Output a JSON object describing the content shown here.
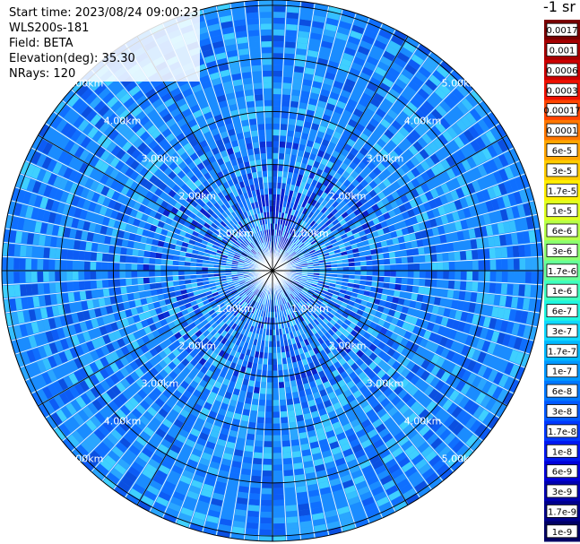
{
  "info": {
    "start_time": "Start time: 2023/08/24 09:00:23",
    "instrument": "WLS200s-181",
    "field": "Field: BETA",
    "elevation": "Elevation(deg): 35.30",
    "nrays": "NRays: 120"
  },
  "colorbar": {
    "units": "-1 sr",
    "labels": [
      "0.0017",
      "0.001",
      "0.0006",
      "0.0003",
      "0.00017",
      "0.0001",
      "6e-5",
      "3e-5",
      "1.7e-5",
      "1e-5",
      "6e-6",
      "3e-6",
      "1.7e-6",
      "1e-6",
      "6e-7",
      "3e-7",
      "1.7e-7",
      "1e-7",
      "6e-8",
      "3e-8",
      "1.7e-8",
      "1e-8",
      "6e-9",
      "3e-9",
      "1.7e-9",
      "1e-9"
    ],
    "colors": [
      "#7a0000",
      "#a50000",
      "#cc0000",
      "#ee1100",
      "#ff4400",
      "#ff7700",
      "#ffa500",
      "#ffcc00",
      "#ffee00",
      "#e0ff20",
      "#b8ff48",
      "#8cff70",
      "#66ff99",
      "#40ffbf",
      "#1ff5e0",
      "#10d8ff",
      "#00b8ff",
      "#0098ff",
      "#0078ff",
      "#0058ff",
      "#0038ff",
      "#0018f0",
      "#0000d8",
      "#0000b0",
      "#00008a",
      "#000064"
    ]
  },
  "chart_data": {
    "type": "heatmap",
    "plot": "polar PPI scan",
    "nrays": 120,
    "elevation_deg": 35.3,
    "field": "BETA",
    "range_rings_km": [
      1,
      2,
      3,
      4,
      5
    ],
    "ring_labels": [
      "1.00km",
      "2.00km",
      "3.00km",
      "4.00km",
      "5.00km"
    ],
    "max_range_km": 5.1,
    "value_range": [
      1e-09,
      0.0017
    ],
    "dominant_level_range": [
      "6e-9",
      "6e-8"
    ]
  }
}
